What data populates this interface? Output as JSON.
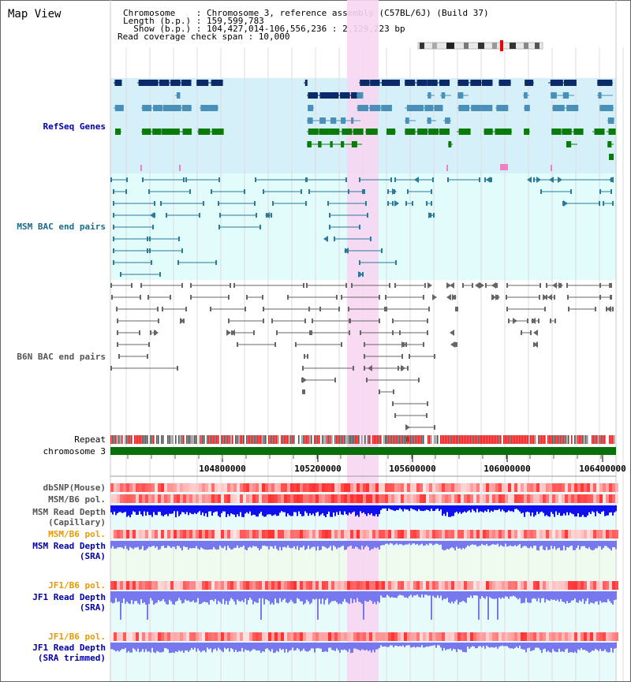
{
  "window": {
    "title": "Map View"
  },
  "header": {
    "chromosome_line": "Chromosome    : Chromosome 3, reference assembly (C57BL/6J) (Build 37)",
    "length_line": "Length (b.p.) : 159,599,783",
    "show_line": "  Show (b.p.) : 104,427,014-106,556,236 : 2,129,223 bp",
    "coverage_line": "Read coverage check span : 10,000"
  },
  "tracks": {
    "refseq": "RefSeq Genes",
    "msm_bac": "MSM BAC end pairs",
    "b6n_bac": "B6N BAC end pairs",
    "repeat": "Repeat",
    "chromosome": "chromosome 3",
    "dbsnp": "dbSNP(Mouse)",
    "msm_b6_pol_1": "MSM/B6 pol.",
    "msm_depth_cap_1": "MSM Read Depth",
    "msm_depth_cap_2": "(Capillary)",
    "msm_b6_pol_2": "MSM/B6 pol.",
    "msm_depth_sra_1": "MSM Read Depth",
    "msm_depth_sra_2": "(SRA)",
    "jf1_b6_pol_1": "JF1/B6 pol.",
    "jf1_depth_sra_1": "JF1 Read Depth",
    "jf1_depth_sra_2": "(SRA)",
    "jf1_b6_pol_2": "JF1/B6 pol.",
    "jf1_depth_trim_1": "JF1 Read Depth",
    "jf1_depth_trim_2": "(SRA trimmed)"
  },
  "axis": {
    "ticks": [
      "104800000",
      "105200000",
      "105600000",
      "106000000",
      "106400000"
    ]
  },
  "colors": {
    "refseq_bg": "#d6f0fa",
    "msm_bg": "#e2fbfb",
    "highlight": "#f7d6f2",
    "refseq_navy": "#0a2a6a",
    "refseq_steel": "#4a8fb8",
    "refseq_green": "#0a7a0a",
    "msm_line": "#2a7a9a",
    "b6n_line": "#666666",
    "chrom_green": "#0a6e0a",
    "label_blue": "#0000aa",
    "label_orange": "#e89a00",
    "depth_dark": "#1010ee",
    "depth_light": "#7777ee",
    "pol_red": "#ff3b3b"
  }
}
